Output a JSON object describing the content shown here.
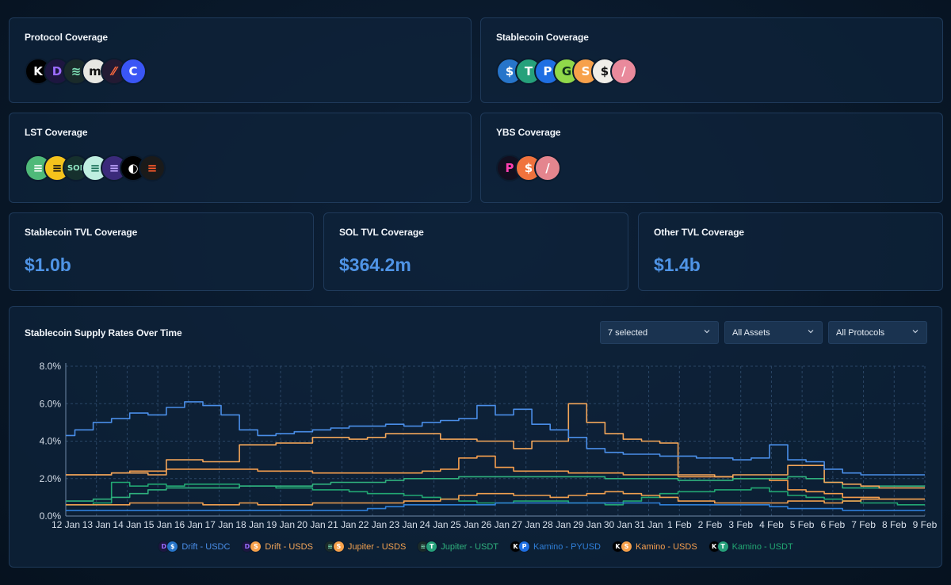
{
  "cards": {
    "protocol": {
      "title": "Protocol Coverage",
      "icons": [
        {
          "name": "kamino-icon",
          "glyph": "K",
          "bg": "#000000",
          "fg": "#ffffff"
        },
        {
          "name": "drift-icon",
          "glyph": "D",
          "bg": "#1d1640",
          "fg": "#9b6cff"
        },
        {
          "name": "jupiter-icon",
          "glyph": "≋",
          "bg": "#1a2b2a",
          "fg": "#7fe0b6"
        },
        {
          "name": "marginfi-icon",
          "glyph": "m",
          "bg": "#e7e7e2",
          "fg": "#111111"
        },
        {
          "name": "solend-icon",
          "glyph": "⁄⁄",
          "bg": "#231a33",
          "fg": "#ff6a3d"
        },
        {
          "name": "loopscale-icon",
          "glyph": "C",
          "bg": "#3a56f5",
          "fg": "#ffffff"
        }
      ]
    },
    "stablecoin": {
      "title": "Stablecoin Coverage",
      "icons": [
        {
          "name": "usdc-icon",
          "glyph": "$",
          "bg": "#2775ca",
          "fg": "#ffffff"
        },
        {
          "name": "usdt-icon",
          "glyph": "T",
          "bg": "#26a17b",
          "fg": "#ffffff"
        },
        {
          "name": "pyusd-icon",
          "glyph": "P",
          "bg": "#1f6fe3",
          "fg": "#ffffff"
        },
        {
          "name": "usdg-icon",
          "glyph": "G",
          "bg": "#90d84a",
          "fg": "#10321a"
        },
        {
          "name": "usds-icon",
          "glyph": "S",
          "bg": "#f7a14b",
          "fg": "#ffffff"
        },
        {
          "name": "usde-icon",
          "glyph": "$",
          "bg": "#f0eee8",
          "fg": "#111111"
        },
        {
          "name": "fdusd-icon",
          "glyph": "/",
          "bg": "#e98a9c",
          "fg": "#ffffff"
        }
      ]
    },
    "lst": {
      "title": "LST Coverage",
      "icons": [
        {
          "name": "jitosol-icon",
          "glyph": "≡",
          "bg": "#4fb979",
          "fg": "#ffffff"
        },
        {
          "name": "bsol-icon",
          "glyph": "≡",
          "bg": "#f5c31c",
          "fg": "#111111"
        },
        {
          "name": "jupsol-icon",
          "glyph": "SOL",
          "bg": "#16302d",
          "fg": "#8fe3c0"
        },
        {
          "name": "msol-icon",
          "glyph": "≡",
          "bg": "#bfeee0",
          "fg": "#1a6f58"
        },
        {
          "name": "inf-icon",
          "glyph": "≡",
          "bg": "#3b2a7a",
          "fg": "#c0a6ff"
        },
        {
          "name": "hsol-icon",
          "glyph": "◐",
          "bg": "#000000",
          "fg": "#ffffff"
        },
        {
          "name": "bbsol-icon",
          "glyph": "≡",
          "bg": "#1a1a1a",
          "fg": "#ff5a2b"
        }
      ]
    },
    "ybs": {
      "title": "YBS Coverage",
      "icons": [
        {
          "name": "prime-icon",
          "glyph": "P",
          "bg": "#120f1f",
          "fg": "#ff3fb0"
        },
        {
          "name": "susds-icon",
          "glyph": "$",
          "bg": "#f0733e",
          "fg": "#ffffff"
        },
        {
          "name": "ybs-fdusd-icon",
          "glyph": "/",
          "bg": "#e4858e",
          "fg": "#ffffff"
        }
      ]
    }
  },
  "kpis": [
    {
      "title": "Stablecoin TVL Coverage",
      "value": "$1.0b"
    },
    {
      "title": "SOL TVL Coverage",
      "value": "$364.2m"
    },
    {
      "title": "Other TVL Coverage",
      "value": "$1.4b"
    }
  ],
  "chart_panel": {
    "title": "Stablecoin Supply Rates Over Time",
    "dropdowns": [
      "7 selected",
      "All Assets",
      "All Protocols"
    ]
  },
  "chart_data": {
    "type": "line",
    "title": "Stablecoin Supply Rates Over Time",
    "xlabel": "",
    "ylabel": "",
    "ylim": [
      0,
      8
    ],
    "y_ticks": [
      "0.0%",
      "2.0%",
      "4.0%",
      "6.0%",
      "8.0%"
    ],
    "x_ticks": [
      "12 Jan",
      "13 Jan",
      "14 Jan",
      "15 Jan",
      "16 Jan",
      "17 Jan",
      "18 Jan",
      "19 Jan",
      "20 Jan",
      "21 Jan",
      "22 Jan",
      "23 Jan",
      "24 Jan",
      "25 Jan",
      "26 Jan",
      "27 Jan",
      "28 Jan",
      "29 Jan",
      "30 Jan",
      "31 Jan",
      "1 Feb",
      "2 Feb",
      "3 Feb",
      "4 Feb",
      "5 Feb",
      "6 Feb",
      "7 Feb",
      "8 Feb",
      "9 Feb"
    ],
    "grid": true,
    "legend_position": "bottom",
    "series": [
      {
        "name": "Drift - USDC",
        "color": "#4a8ee8",
        "icons": [
          {
            "glyph": "D",
            "bg": "#1d1640",
            "fg": "#9b6cff"
          },
          {
            "glyph": "$",
            "bg": "#2775ca",
            "fg": "#ffffff"
          }
        ],
        "values": [
          4.3,
          4.6,
          5.0,
          5.2,
          5.5,
          5.4,
          5.8,
          6.1,
          5.9,
          5.4,
          4.6,
          4.3,
          4.4,
          4.5,
          4.6,
          4.7,
          4.8,
          4.8,
          4.9,
          4.8,
          5.0,
          5.1,
          5.2,
          5.9,
          5.4,
          5.7,
          4.9,
          4.6,
          4.2,
          3.6,
          3.4,
          3.3,
          3.3,
          3.2,
          3.2,
          3.1,
          3.1,
          3.0,
          3.1,
          3.8,
          3.0,
          2.9,
          2.5,
          2.3,
          2.2,
          2.2,
          2.2,
          2.2
        ]
      },
      {
        "name": "Drift - USDS",
        "color": "#f3a65a",
        "icons": [
          {
            "glyph": "D",
            "bg": "#1d1640",
            "fg": "#9b6cff"
          },
          {
            "glyph": "S",
            "bg": "#f7a14b",
            "fg": "#ffffff"
          }
        ],
        "values": [
          2.2,
          2.2,
          2.2,
          2.3,
          2.3,
          2.2,
          3.0,
          3.0,
          2.9,
          2.9,
          3.8,
          3.8,
          3.9,
          3.9,
          4.2,
          4.2,
          4.1,
          4.2,
          4.4,
          4.4,
          4.4,
          4.1,
          4.1,
          4.0,
          4.0,
          3.6,
          4.0,
          4.0,
          6.0,
          5.0,
          4.4,
          4.1,
          4.0,
          3.9,
          2.2,
          2.2,
          2.1,
          2.2,
          2.2,
          2.2,
          2.7,
          2.7,
          1.8,
          1.7,
          1.6,
          1.5,
          1.5,
          1.5
        ]
      },
      {
        "name": "Jupiter - USDS",
        "color": "#f0a050",
        "icons": [
          {
            "glyph": "≋",
            "bg": "#1a2b2a",
            "fg": "#7fe0b6"
          },
          {
            "glyph": "S",
            "bg": "#f7a14b",
            "fg": "#ffffff"
          }
        ],
        "values": [
          0.6,
          0.6,
          0.6,
          0.6,
          0.7,
          0.7,
          0.7,
          0.7,
          0.6,
          0.6,
          0.7,
          0.6,
          0.6,
          0.6,
          0.7,
          0.7,
          0.7,
          0.7,
          0.7,
          0.8,
          0.8,
          0.9,
          1.1,
          1.2,
          1.2,
          1.1,
          1.1,
          1.0,
          1.1,
          1.2,
          1.3,
          1.2,
          1.1,
          1.0,
          0.8,
          0.8,
          0.7,
          0.7,
          0.7,
          0.7,
          0.8,
          0.8,
          0.7,
          0.8,
          0.9,
          0.9,
          0.9,
          0.9
        ]
      },
      {
        "name": "Jupiter - USDT",
        "color": "#2fb07d",
        "icons": [
          {
            "glyph": "≋",
            "bg": "#1a2b2a",
            "fg": "#7fe0b6"
          },
          {
            "glyph": "T",
            "bg": "#26a17b",
            "fg": "#ffffff"
          }
        ],
        "values": [
          0.8,
          0.8,
          0.9,
          1.0,
          1.2,
          1.4,
          1.5,
          1.5,
          1.5,
          1.5,
          1.6,
          1.6,
          1.6,
          1.6,
          1.7,
          1.8,
          1.8,
          1.8,
          1.9,
          2.0,
          2.0,
          2.0,
          2.1,
          2.1,
          2.1,
          2.1,
          2.1,
          2.1,
          2.1,
          2.1,
          2.0,
          2.0,
          2.0,
          2.0,
          1.9,
          1.9,
          1.9,
          2.0,
          2.0,
          2.0,
          2.1,
          2.0,
          1.8,
          1.5,
          1.5,
          1.6,
          1.6,
          1.6
        ]
      },
      {
        "name": "Kamino - PYUSD",
        "color": "#2f7fd8",
        "icons": [
          {
            "glyph": "K",
            "bg": "#000000",
            "fg": "#ffffff"
          },
          {
            "glyph": "P",
            "bg": "#1f6fe3",
            "fg": "#ffffff"
          }
        ],
        "values": [
          0.3,
          0.3,
          0.3,
          0.3,
          0.3,
          0.3,
          0.3,
          0.3,
          0.3,
          0.3,
          0.3,
          0.3,
          0.3,
          0.3,
          0.3,
          0.3,
          0.3,
          0.4,
          0.5,
          0.6,
          0.6,
          0.6,
          0.6,
          0.6,
          0.7,
          0.7,
          0.7,
          0.7,
          0.7,
          0.7,
          0.7,
          0.7,
          0.7,
          0.6,
          0.6,
          0.6,
          0.6,
          0.6,
          0.6,
          0.5,
          0.4,
          0.4,
          0.4,
          0.3,
          0.3,
          0.3,
          0.3,
          0.3
        ]
      },
      {
        "name": "Kamino - USDS",
        "color": "#f59e4e",
        "icons": [
          {
            "glyph": "K",
            "bg": "#000000",
            "fg": "#ffffff"
          },
          {
            "glyph": "S",
            "bg": "#f7a14b",
            "fg": "#ffffff"
          }
        ],
        "values": [
          2.2,
          2.2,
          2.2,
          2.3,
          2.4,
          2.4,
          2.5,
          2.5,
          2.5,
          2.5,
          2.5,
          2.4,
          2.4,
          2.4,
          2.3,
          2.3,
          2.3,
          2.3,
          2.3,
          2.3,
          2.4,
          2.5,
          3.1,
          3.2,
          2.6,
          2.4,
          2.4,
          2.4,
          2.3,
          2.3,
          2.3,
          2.2,
          2.2,
          2.2,
          2.1,
          2.1,
          2.1,
          2.0,
          2.0,
          1.9,
          1.4,
          1.3,
          1.2,
          1.0,
          1.0,
          0.9,
          0.9,
          0.9
        ]
      },
      {
        "name": "Kamino - USDT",
        "color": "#22a873",
        "icons": [
          {
            "glyph": "K",
            "bg": "#000000",
            "fg": "#ffffff"
          },
          {
            "glyph": "T",
            "bg": "#26a17b",
            "fg": "#ffffff"
          }
        ],
        "values": [
          0.6,
          0.6,
          0.7,
          1.8,
          1.6,
          1.7,
          1.6,
          1.7,
          1.7,
          1.7,
          1.6,
          1.6,
          1.5,
          1.5,
          1.4,
          1.4,
          1.3,
          1.2,
          1.2,
          1.1,
          1.0,
          0.9,
          0.8,
          0.7,
          0.7,
          0.8,
          0.8,
          0.8,
          0.7,
          0.7,
          0.6,
          0.8,
          1.0,
          1.2,
          1.3,
          1.3,
          1.4,
          1.4,
          1.5,
          1.3,
          1.1,
          1.0,
          0.9,
          0.8,
          0.7,
          0.7,
          0.6,
          0.6
        ]
      }
    ]
  }
}
